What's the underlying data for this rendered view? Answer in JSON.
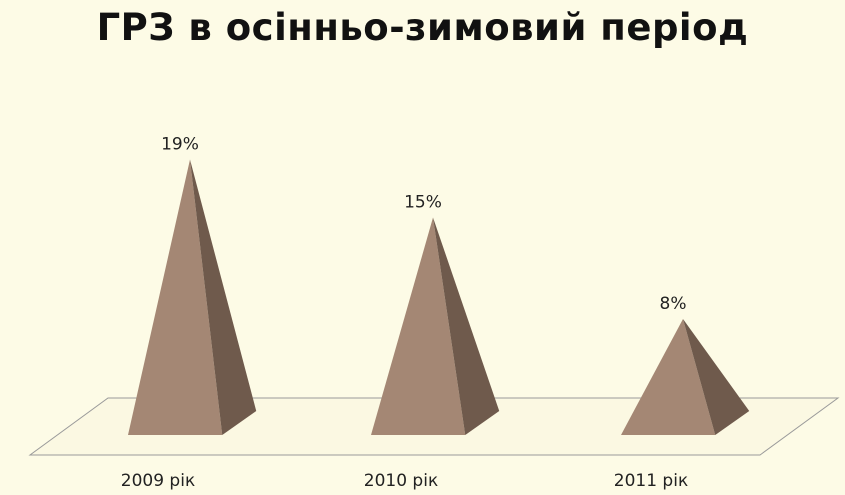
{
  "chart_data": {
    "type": "bar",
    "title": "ГРЗ в осінньо-зимовий період",
    "categories": [
      "2009 рік",
      "2010 рік",
      "2011 рік"
    ],
    "values": [
      19,
      15,
      8
    ],
    "data_labels": [
      "19%",
      "15%",
      "8%"
    ],
    "unit": "%",
    "ylim": [
      0,
      20
    ],
    "grid": false,
    "legend": "none"
  },
  "colors": {
    "background": "#fdfbe6",
    "pyramid_front": "#a48774",
    "pyramid_side": "#6f5a4c",
    "floor_fill": "#fbf8e2",
    "floor_stroke": "#9a9a9a"
  }
}
